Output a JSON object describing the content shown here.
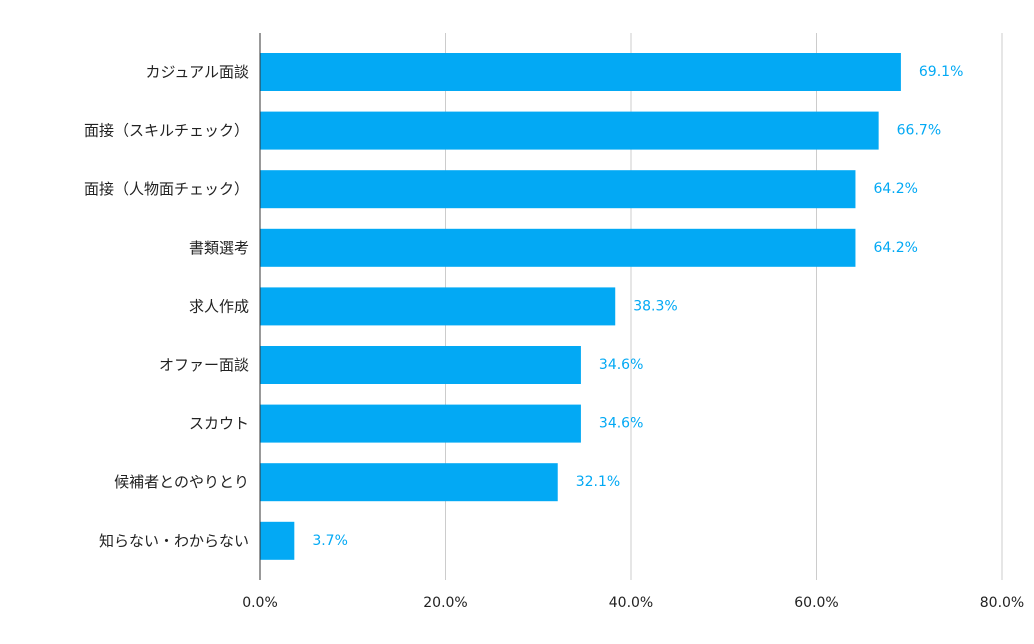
{
  "chart_data": {
    "type": "bar",
    "orientation": "horizontal",
    "categories": [
      "カジュアル面談",
      "面接（スキルチェック）",
      "面接（人物面チェック）",
      "書類選考",
      "求人作成",
      "オファー面談",
      "スカウト",
      "候補者とのやりとり",
      "知らない・わからない"
    ],
    "values": [
      69.1,
      66.7,
      64.2,
      64.2,
      38.3,
      34.6,
      34.6,
      32.1,
      3.7
    ],
    "value_labels": [
      "69.1%",
      "66.7%",
      "64.2%",
      "64.2%",
      "38.3%",
      "34.6%",
      "34.6%",
      "32.1%",
      "3.7%"
    ],
    "xlim": [
      0,
      80
    ],
    "x_ticks": [
      0,
      20,
      40,
      60,
      80
    ],
    "x_tick_labels": [
      "0.0%",
      "20.0%",
      "40.0%",
      "60.0%",
      "80.0%"
    ],
    "grid": true,
    "legend": "none",
    "colors": {
      "bar": "#03A9F4",
      "data_label": "#03A9F4",
      "grid": "#cccccc",
      "axis": "#333333",
      "text": "#222222"
    }
  }
}
